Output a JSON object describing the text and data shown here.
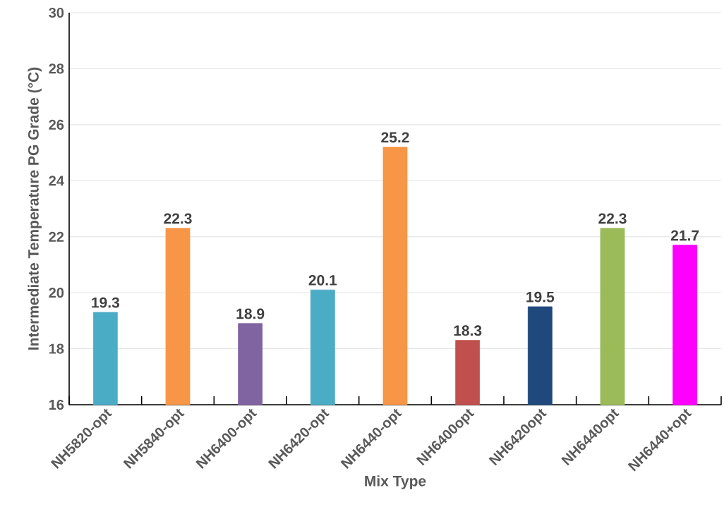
{
  "chart_data": {
    "type": "bar",
    "xlabel": "Mix Type",
    "ylabel": "Intermediate Temperature PG Grade (°C)",
    "categories": [
      "NH5820-opt",
      "NH5840-opt",
      "NH6400-opt",
      "NH6420-opt",
      "NH6440-opt",
      "NH6400opt",
      "NH6420opt",
      "NH6440opt",
      "NH6440+opt"
    ],
    "values": [
      19.3,
      22.3,
      18.9,
      20.1,
      25.2,
      18.3,
      19.5,
      22.3,
      21.7
    ],
    "colors": [
      "#4bacc6",
      "#f79646",
      "#8064a2",
      "#4bacc6",
      "#f79646",
      "#c0504d",
      "#1f497d",
      "#9bbb59",
      "#ff00ff"
    ],
    "value_labels": [
      "19.3",
      "22.3",
      "18.9",
      "20.1",
      "25.2",
      "18.3",
      "19.5",
      "22.3",
      "21.7"
    ],
    "ylim": [
      16,
      30
    ],
    "yticks": [
      16,
      18,
      20,
      22,
      24,
      26,
      28,
      30
    ],
    "grid": "y"
  }
}
